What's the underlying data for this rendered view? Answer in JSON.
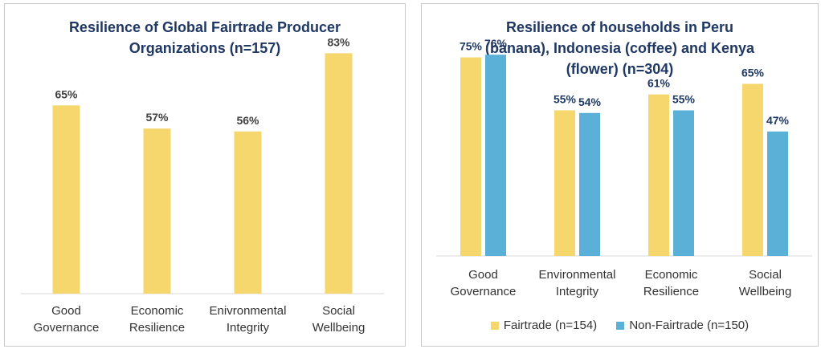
{
  "chart_data": [
    {
      "type": "bar",
      "title": "Resilience of Global Fairtrade Producer Organizations (n=157)",
      "categories": [
        [
          "Good",
          "Governance"
        ],
        [
          "Economic",
          "Resilience"
        ],
        [
          "Enivronmental",
          "Integrity"
        ],
        [
          "Social",
          "Wellbeing"
        ]
      ],
      "series": [
        {
          "values": [
            65,
            57,
            56,
            83
          ],
          "labels": [
            "65%",
            "57%",
            "56%",
            "83%"
          ],
          "color": "#f5d76e"
        }
      ],
      "ylim": [
        0,
        100
      ],
      "value_label_color": "#404040",
      "grid": false
    },
    {
      "type": "bar",
      "title": "Resilience of households in Peru (banana), Indonesia (coffee) and Kenya (flower) (n=304)",
      "categories": [
        [
          "Good",
          "Governance"
        ],
        [
          "Environmental",
          "Integrity"
        ],
        [
          "Economic",
          "Resilience"
        ],
        [
          "Social",
          "Wellbeing"
        ]
      ],
      "series": [
        {
          "name": "Fairtrade (n=154)",
          "values": [
            75,
            55,
            61,
            65
          ],
          "labels": [
            "75%",
            "55%",
            "61%",
            "65%"
          ],
          "color": "#f5d76e"
        },
        {
          "name": "Non-Fairtrade (n=150)",
          "values": [
            76,
            54,
            55,
            47
          ],
          "labels": [
            "76%",
            "54%",
            "55%",
            "47%"
          ],
          "color": "#5ab0d6"
        }
      ],
      "ylim": [
        0,
        100
      ],
      "value_label_color": "#1f3864",
      "legend": "bottom",
      "grid": false
    }
  ],
  "titles": {
    "left": [
      "Resilience of Global Fairtrade Producer",
      "Organizations (n=157)"
    ],
    "right": [
      "Resilience of households in Peru",
      "(banana), Indonesia (coffee) and Kenya",
      "(flower) (n=304)"
    ]
  },
  "legend": {
    "fairtrade": "Fairtrade (n=154)",
    "nonfairtrade": "Non-Fairtrade (n=150)"
  }
}
